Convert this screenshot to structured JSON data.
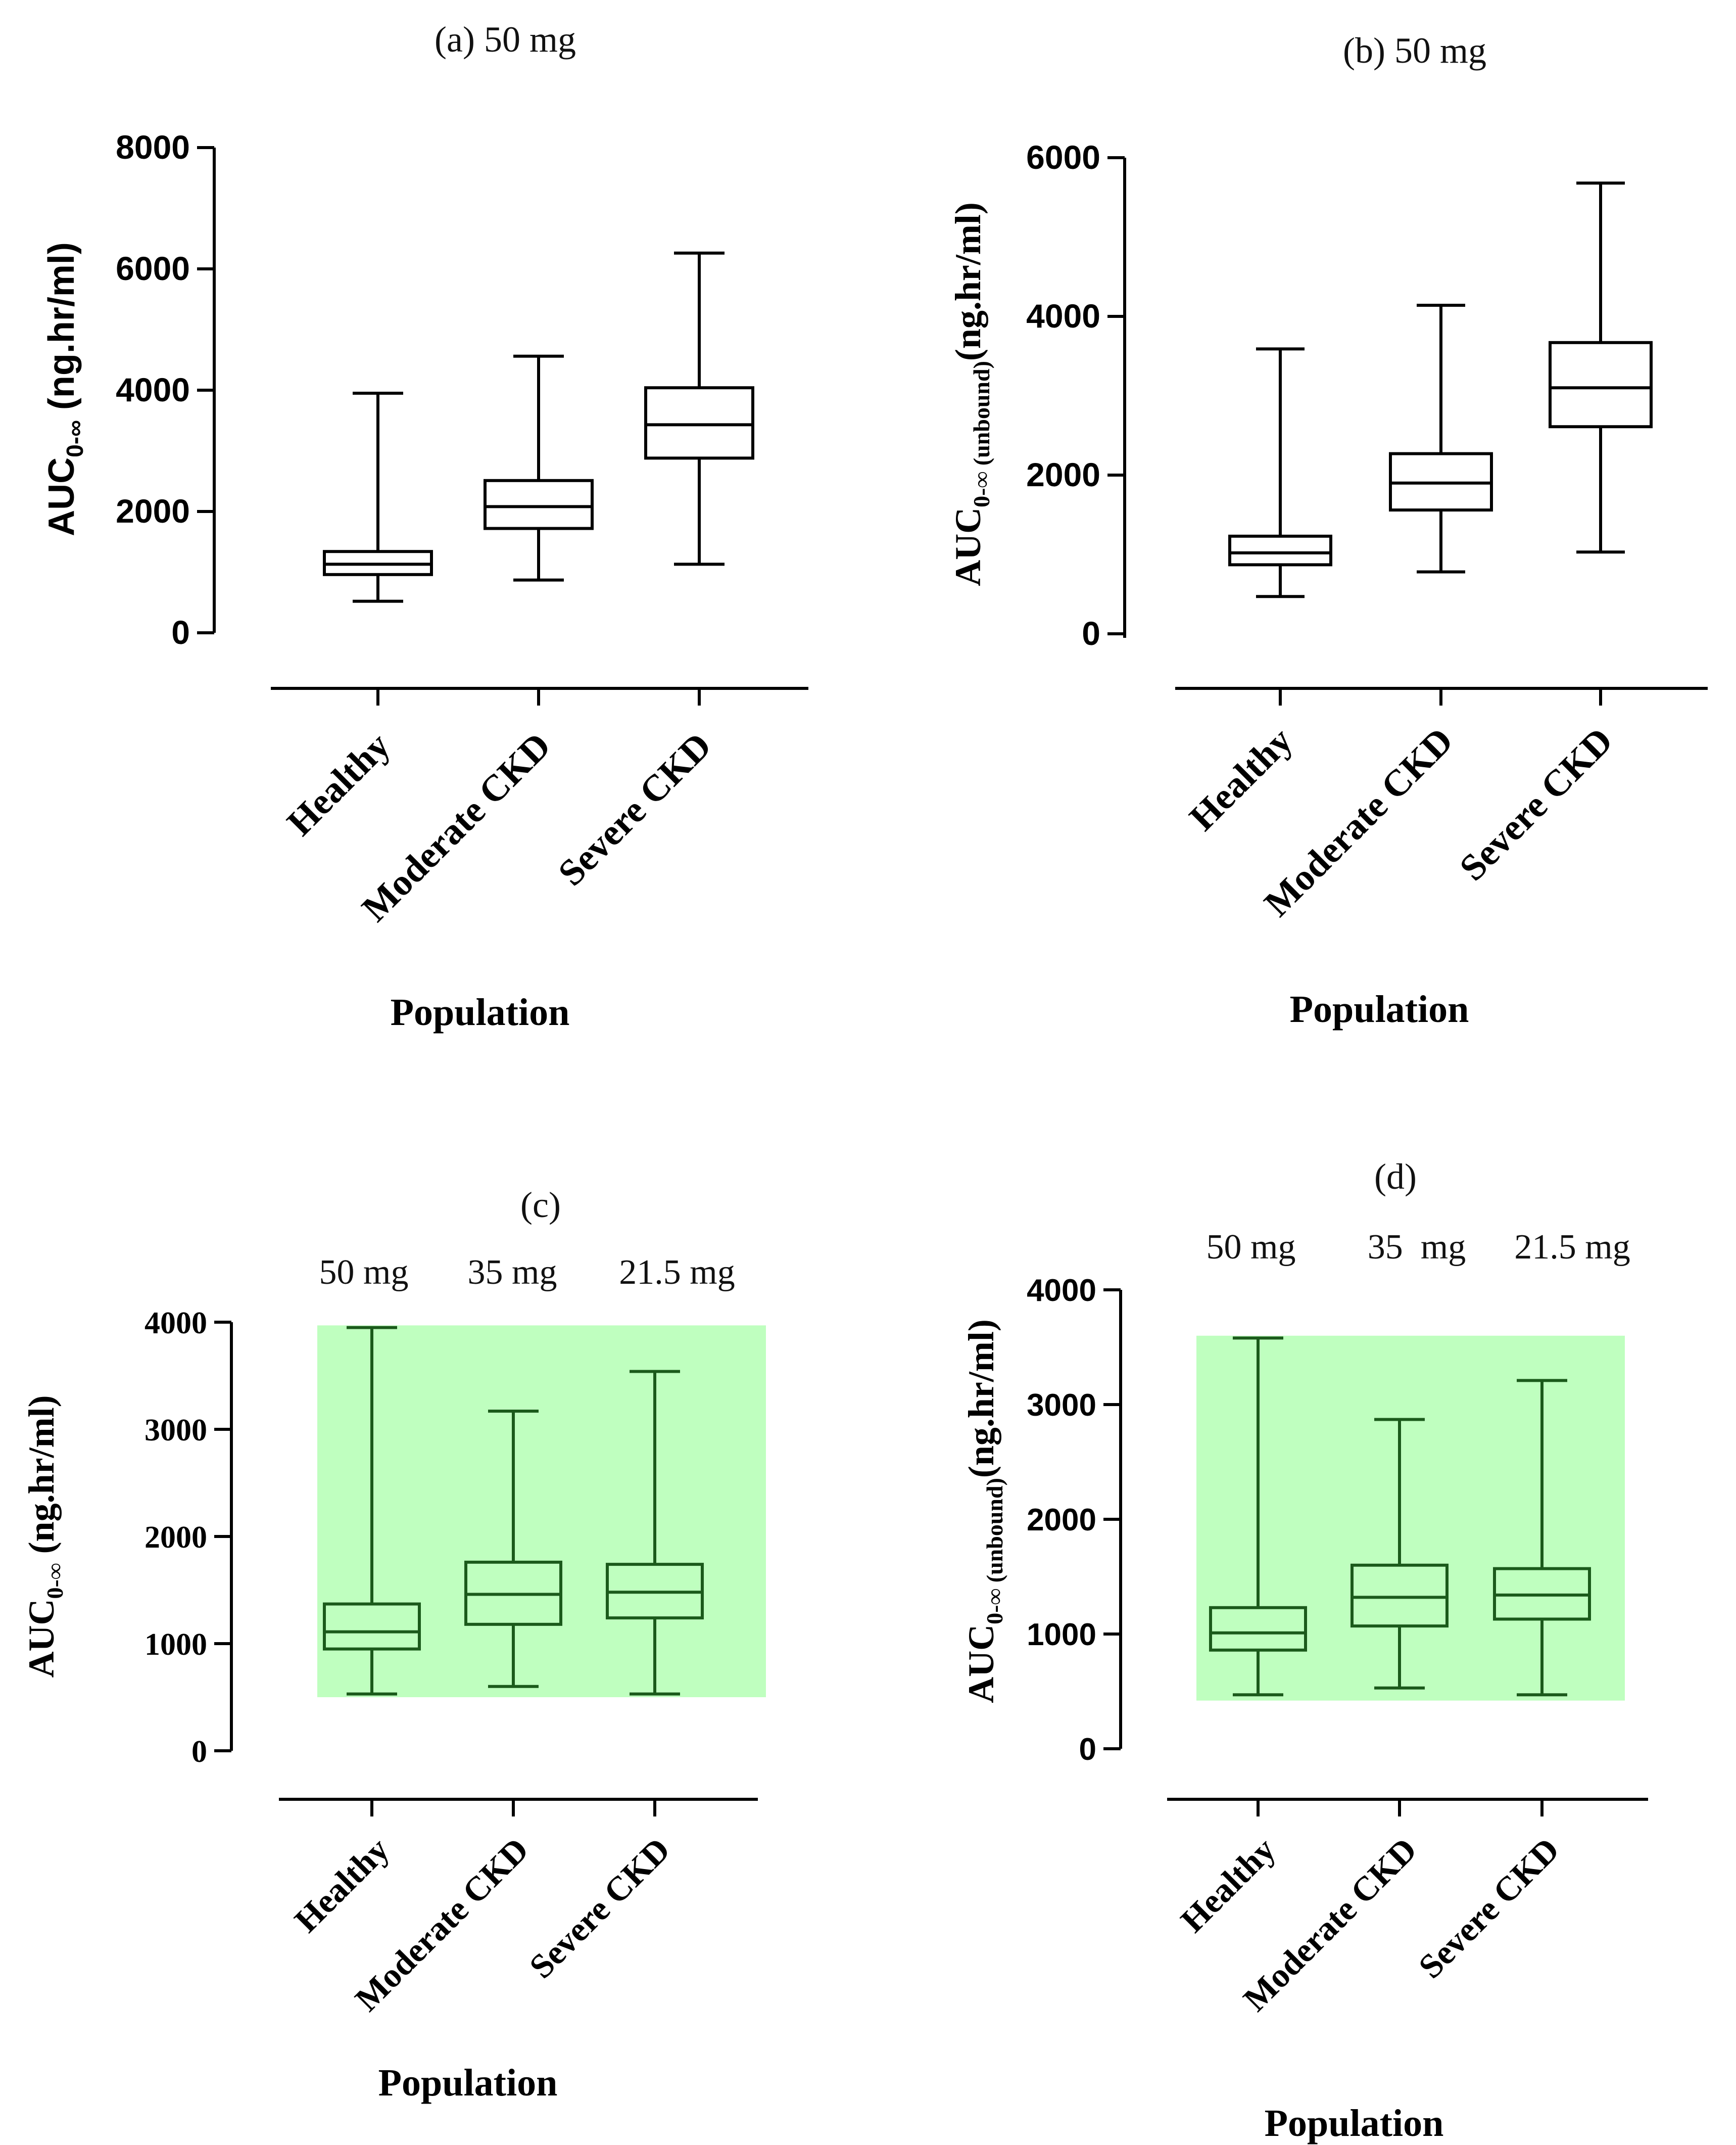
{
  "chart_data": [
    {
      "type": "box",
      "panel": "a",
      "title": "(a) 50 mg",
      "xlabel": "Population",
      "ylabel": "AUC0-∞ (ng.hr/ml)",
      "ylabel_main": "AUC",
      "ylabel_sub": "0-∞",
      "ylabel_rest": " (ng.hr/ml)",
      "ylim": [
        0,
        8000
      ],
      "yticks": [
        "0",
        "2000",
        "4000",
        "6000",
        "8000"
      ],
      "ytick_values": [
        0,
        2000,
        4000,
        6000,
        8000
      ],
      "categories": [
        "Healthy",
        "Moderate CKD",
        "Severe CKD"
      ],
      "boxes": [
        {
          "min": 520,
          "q1": 960,
          "median": 1130,
          "q3": 1340,
          "max": 3950
        },
        {
          "min": 870,
          "q1": 1720,
          "median": 2080,
          "q3": 2510,
          "max": 4560
        },
        {
          "min": 1130,
          "q1": 2880,
          "median": 3430,
          "q3": 4040,
          "max": 6260
        }
      ],
      "box_color": "#000000"
    },
    {
      "type": "box",
      "panel": "b",
      "title": "(b) 50 mg",
      "xlabel": "Population",
      "ylabel": "AUC0-∞ (unbound)(ng.hr/ml)",
      "ylabel_main": "AUC",
      "ylabel_sub": "0-∞ (unbound)",
      "ylabel_rest": "(ng.hr/ml)",
      "ylim": [
        0,
        6000
      ],
      "yticks": [
        "0",
        "2000",
        "4000",
        "6000"
      ],
      "ytick_values": [
        0,
        2000,
        4000,
        6000
      ],
      "categories": [
        "Healthy",
        "Moderate CKD",
        "Severe CKD"
      ],
      "boxes": [
        {
          "min": 470,
          "q1": 870,
          "median": 1020,
          "q3": 1230,
          "max": 3590
        },
        {
          "min": 780,
          "q1": 1560,
          "median": 1900,
          "q3": 2270,
          "max": 4140
        },
        {
          "min": 1030,
          "q1": 2610,
          "median": 3100,
          "q3": 3670,
          "max": 5680
        }
      ],
      "box_color": "#000000"
    },
    {
      "type": "box",
      "panel": "c",
      "title": "(c)",
      "dose_labels": [
        "50 mg",
        "35 mg",
        "21.5 mg"
      ],
      "xlabel": "Population",
      "ylabel": "AUC0-∞ (ng.hr/ml)",
      "ylabel_main": "AUC",
      "ylabel_sub": "0-∞",
      "ylabel_rest": " (ng.hr/ml)",
      "ylim": [
        0,
        4000
      ],
      "yticks": [
        "0",
        "1000",
        "2000",
        "3000",
        "4000"
      ],
      "ytick_values": [
        0,
        1000,
        2000,
        3000,
        4000
      ],
      "categories": [
        "Healthy",
        "Moderate CKD",
        "Severe CKD"
      ],
      "boxes": [
        {
          "min": 530,
          "q1": 950,
          "median": 1110,
          "q3": 1370,
          "max": 3950
        },
        {
          "min": 600,
          "q1": 1180,
          "median": 1460,
          "q3": 1760,
          "max": 3170
        },
        {
          "min": 530,
          "q1": 1240,
          "median": 1480,
          "q3": 1740,
          "max": 3540
        }
      ],
      "band": {
        "low": 500,
        "high": 3970
      },
      "band_color": "#bfffbf",
      "box_color": "#1b5a1b"
    },
    {
      "type": "box",
      "panel": "d",
      "title": "(d)",
      "dose_labels": [
        "50 mg",
        "35  mg",
        "21.5 mg"
      ],
      "xlabel": "Population",
      "ylabel": "AUC0-∞ (unbound)(ng.hr/ml)",
      "ylabel_main": "AUC",
      "ylabel_sub": "0-∞ (unbound)",
      "ylabel_rest": "(ng.hr/ml)",
      "ylim": [
        0,
        4000
      ],
      "yticks": [
        "0",
        "1000",
        "2000",
        "3000",
        "4000"
      ],
      "ytick_values": [
        0,
        1000,
        2000,
        3000,
        4000
      ],
      "categories": [
        "Healthy",
        "Moderate CKD",
        "Severe CKD"
      ],
      "boxes": [
        {
          "min": 470,
          "q1": 860,
          "median": 1010,
          "q3": 1230,
          "max": 3580
        },
        {
          "min": 530,
          "q1": 1070,
          "median": 1320,
          "q3": 1600,
          "max": 2870
        },
        {
          "min": 470,
          "q1": 1130,
          "median": 1340,
          "q3": 1570,
          "max": 3210
        }
      ],
      "band": {
        "low": 420,
        "high": 3600
      },
      "band_color": "#bfffbf",
      "box_color": "#1b5a1b"
    }
  ]
}
